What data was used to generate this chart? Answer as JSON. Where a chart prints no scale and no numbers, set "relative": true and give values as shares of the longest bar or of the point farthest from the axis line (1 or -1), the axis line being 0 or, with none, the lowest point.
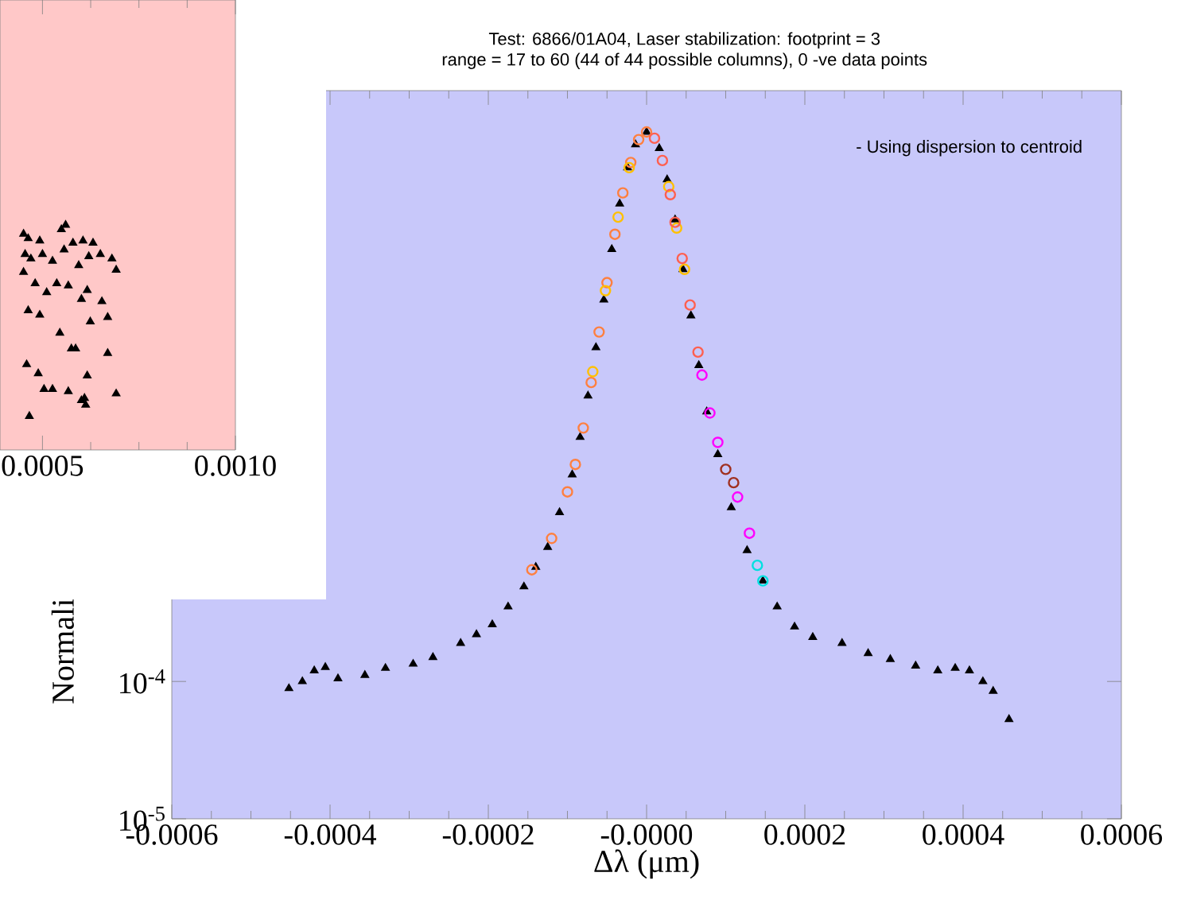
{
  "chart_data": [
    {
      "type": "scatter",
      "relative": true,
      "marker": "triangle",
      "xlim": [
        0.00039,
        0.001
      ],
      "xticks": [
        {
          "value": 0.0005,
          "label": "0.0005"
        },
        {
          "value": 0.001,
          "label": "0.0010"
        }
      ],
      "series": [
        {
          "color": "#000000",
          "x": [
            0.000451,
            0.000463,
            0.000493,
            0.000549,
            0.00056,
            0.000579,
            0.000605,
            0.000631,
            0.000455,
            0.00047,
            0.0005,
            0.000526,
            0.000556,
            0.000594,
            0.00062,
            0.00065,
            0.00068,
            0.000691,
            0.000451,
            0.000481,
            0.000511,
            0.000537,
            0.000567,
            0.000601,
            0.000616,
            0.000654,
            0.000669,
            0.000463,
            0.000493,
            0.000545,
            0.000575,
            0.000586,
            0.000624,
            0.000669,
            0.000459,
            0.000489,
            0.000504,
            0.000526,
            0.000567,
            0.000601,
            0.000612,
            0.000691,
            0.000466,
            0.000609,
            0.000616
          ],
          "values": [
            0.96,
            0.94,
            0.93,
            0.98,
            1,
            0.92,
            0.93,
            0.92,
            0.87,
            0.85,
            0.87,
            0.84,
            0.89,
            0.82,
            0.86,
            0.87,
            0.85,
            0.8,
            0.79,
            0.74,
            0.7,
            0.74,
            0.73,
            0.67,
            0.71,
            0.66,
            0.59,
            0.62,
            0.6,
            0.52,
            0.45,
            0.45,
            0.57,
            0.43,
            0.38,
            0.34,
            0.27,
            0.27,
            0.26,
            0.22,
            0.2,
            0.25,
            0.15,
            0.23,
            0.33
          ]
        }
      ]
    },
    {
      "type": "scatter",
      "title": "Test: 6866/01A04, Laser stabilization: footprint = 3",
      "subtitle": "range = 17 to 60 (44 of 44 possible columns), 0 -ve data points",
      "xlabel": "Δλ (μm)",
      "ylabel": "Normali",
      "annotations": [
        "- Using dispersion to centroid"
      ],
      "log": "y",
      "xlim": [
        -0.0006,
        0.0006
      ],
      "ylim": [
        1e-05,
        2
      ],
      "xticks": [
        -0.0006,
        -0.0004,
        -0.0002,
        {
          "value": 0,
          "label": "-0.0000"
        },
        0.0002,
        0.0004,
        0.0006
      ],
      "yticks": [
        {
          "value": 1e-05,
          "label": "10$^{-5}$"
        },
        {
          "value": 0.0001,
          "label": "10$^{-4}$"
        }
      ],
      "series": [
        {
          "color": "#000000",
          "marker": "triangle",
          "x": [
            -0.000452,
            -0.000435,
            -0.00042,
            -0.000406,
            -0.00039,
            -0.000356,
            -0.00033,
            -0.000295,
            -0.00027,
            -0.000235,
            -0.000215,
            -0.000195,
            -0.000175,
            -0.000155,
            -0.00014,
            -0.000125,
            -0.00011,
            -9.4e-05,
            -8.4e-05,
            -7.4e-05,
            -6.4e-05,
            -5.4e-05,
            -4.4e-05,
            -3.4e-05,
            -2.4e-05,
            -1.4e-05,
            0,
            1.6e-05,
            2.6e-05,
            3.6e-05,
            4.6e-05,
            5.6e-05,
            6.6e-05,
            7.6e-05,
            9e-05,
            0.000107,
            0.000127,
            0.000147,
            0.000165,
            0.000187,
            0.00021,
            0.000247,
            0.00028,
            0.000308,
            0.00034,
            0.000368,
            0.00039,
            0.000408,
            0.000425,
            0.000438,
            0.000458
          ],
          "values": [
            8.9e-05,
            0.0001,
            0.00012,
            0.000127,
            0.000105,
            0.000111,
            0.000125,
            0.000134,
            0.00015,
            0.00019,
            0.00022,
            0.00026,
            0.00035,
            0.00049,
            0.00068,
            0.00095,
            0.0017,
            0.0032,
            0.006,
            0.012,
            0.027,
            0.06,
            0.14,
            0.3,
            0.55,
            0.81,
            1.0,
            0.76,
            0.45,
            0.23,
            0.1,
            0.046,
            0.02,
            0.0092,
            0.0045,
            0.00185,
            0.0009,
            0.00054,
            0.00035,
            0.00025,
            0.00021,
            0.00019,
            0.00016,
            0.000145,
            0.00013,
            0.00012,
            0.000125,
            0.00012,
            0.0001,
            8.5e-05,
            5.3e-05
          ]
        },
        {
          "color": "#ff8040",
          "marker": "circle",
          "x": [
            -0.000145,
            -0.00012,
            -0.0001,
            -9e-05,
            -8e-05,
            -7e-05,
            -6e-05,
            -5e-05,
            -4e-05,
            -3e-05,
            -2e-05,
            -1e-05,
            0
          ],
          "values": [
            0.00065,
            0.0011,
            0.0024,
            0.0038,
            0.007,
            0.015,
            0.035,
            0.08,
            0.18,
            0.36,
            0.6,
            0.88,
            1.0
          ]
        },
        {
          "color": "#ffc000",
          "marker": "circle",
          "x": [
            -6.8e-05,
            -5.2e-05,
            -3.6e-05,
            -2.2e-05,
            2.8e-05,
            3.8e-05,
            4.8e-05
          ],
          "values": [
            0.018,
            0.07,
            0.24,
            0.55,
            0.4,
            0.2,
            0.1
          ]
        },
        {
          "color": "#ff6050",
          "marker": "circle",
          "x": [
            1e-05,
            2e-05,
            3e-05,
            3.6e-05,
            4.5e-05,
            5.5e-05,
            6.5e-05
          ],
          "values": [
            0.9,
            0.62,
            0.35,
            0.22,
            0.12,
            0.055,
            0.025
          ]
        },
        {
          "color": "#a03020",
          "marker": "circle",
          "x": [
            0.0001,
            0.00011
          ],
          "values": [
            0.0035,
            0.0028
          ]
        },
        {
          "color": "#ff00ff",
          "marker": "circle",
          "x": [
            7e-05,
            8e-05,
            9e-05,
            0.000115,
            0.00013
          ],
          "values": [
            0.017,
            0.009,
            0.0055,
            0.0022,
            0.0012
          ]
        },
        {
          "color": "#00e0e0",
          "marker": "circle",
          "x": [
            0.00014,
            0.000147
          ],
          "values": [
            0.0007,
            0.00054
          ]
        }
      ]
    }
  ]
}
